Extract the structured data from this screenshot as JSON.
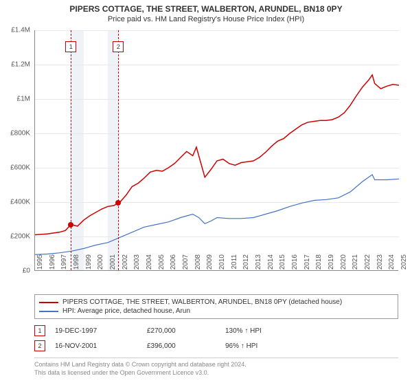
{
  "title": "PIPERS COTTAGE, THE STREET, WALBERTON, ARUNDEL, BN18 0PY",
  "subtitle": "Price paid vs. HM Land Registry's House Price Index (HPI)",
  "chart": {
    "type": "line",
    "x_start": 1995,
    "x_end": 2025,
    "y_min": 0,
    "y_max": 1400000,
    "y_ticks": [
      0,
      200000,
      400000,
      600000,
      800000,
      1000000,
      1200000,
      1400000
    ],
    "y_tick_labels": [
      "£0",
      "£200K",
      "£400K",
      "£600K",
      "£800K",
      "£1M",
      "£1.2M",
      "£1.4M"
    ],
    "x_ticks": [
      1995,
      1996,
      1997,
      1998,
      1999,
      2000,
      2001,
      2002,
      2003,
      2004,
      2005,
      2006,
      2007,
      2008,
      2009,
      2010,
      2011,
      2012,
      2013,
      2014,
      2015,
      2016,
      2017,
      2018,
      2019,
      2020,
      2021,
      2022,
      2023,
      2024,
      2025
    ],
    "grid_color": "#e8e8e8",
    "background_color": "#ffffff",
    "shade_color": "#e8ecf4",
    "shade_ranges": [
      [
        1997.96,
        1999.0
      ],
      [
        2001.0,
        2001.87
      ]
    ],
    "series": [
      {
        "name": "property",
        "label": "PIPERS COTTAGE, THE STREET, WALBERTON, ARUNDEL, BN18 0PY (detached house)",
        "color": "#cc0000",
        "line_width": 1.5,
        "data": [
          [
            1995,
            210000
          ],
          [
            1996,
            215000
          ],
          [
            1997,
            225000
          ],
          [
            1997.5,
            235000
          ],
          [
            1997.96,
            270000
          ],
          [
            1998.5,
            260000
          ],
          [
            1999,
            295000
          ],
          [
            1999.5,
            320000
          ],
          [
            2000,
            340000
          ],
          [
            2000.5,
            360000
          ],
          [
            2001,
            375000
          ],
          [
            2001.5,
            380000
          ],
          [
            2001.87,
            396000
          ],
          [
            2002,
            400000
          ],
          [
            2002.5,
            440000
          ],
          [
            2003,
            490000
          ],
          [
            2003.5,
            510000
          ],
          [
            2004,
            540000
          ],
          [
            2004.5,
            575000
          ],
          [
            2005,
            585000
          ],
          [
            2005.5,
            580000
          ],
          [
            2006,
            600000
          ],
          [
            2006.5,
            625000
          ],
          [
            2007,
            660000
          ],
          [
            2007.5,
            695000
          ],
          [
            2008,
            670000
          ],
          [
            2008.3,
            720000
          ],
          [
            2008.7,
            620000
          ],
          [
            2009,
            545000
          ],
          [
            2009.5,
            590000
          ],
          [
            2010,
            640000
          ],
          [
            2010.5,
            650000
          ],
          [
            2011,
            625000
          ],
          [
            2011.5,
            615000
          ],
          [
            2012,
            630000
          ],
          [
            2012.5,
            635000
          ],
          [
            2013,
            640000
          ],
          [
            2013.5,
            660000
          ],
          [
            2014,
            690000
          ],
          [
            2014.5,
            725000
          ],
          [
            2015,
            755000
          ],
          [
            2015.5,
            770000
          ],
          [
            2016,
            800000
          ],
          [
            2016.5,
            825000
          ],
          [
            2017,
            850000
          ],
          [
            2017.5,
            865000
          ],
          [
            2018,
            870000
          ],
          [
            2018.5,
            875000
          ],
          [
            2019,
            875000
          ],
          [
            2019.5,
            880000
          ],
          [
            2020,
            895000
          ],
          [
            2020.5,
            920000
          ],
          [
            2021,
            965000
          ],
          [
            2021.5,
            1020000
          ],
          [
            2022,
            1070000
          ],
          [
            2022.5,
            1110000
          ],
          [
            2022.8,
            1140000
          ],
          [
            2023,
            1090000
          ],
          [
            2023.5,
            1060000
          ],
          [
            2024,
            1075000
          ],
          [
            2024.5,
            1085000
          ],
          [
            2025,
            1080000
          ]
        ]
      },
      {
        "name": "hpi",
        "label": "HPI: Average price, detached house, Arun",
        "color": "#4472c4",
        "line_width": 1.2,
        "data": [
          [
            1995,
            95000
          ],
          [
            1996,
            98000
          ],
          [
            1997,
            105000
          ],
          [
            1998,
            115000
          ],
          [
            1999,
            130000
          ],
          [
            2000,
            150000
          ],
          [
            2001,
            165000
          ],
          [
            2002,
            195000
          ],
          [
            2003,
            225000
          ],
          [
            2004,
            255000
          ],
          [
            2005,
            270000
          ],
          [
            2006,
            285000
          ],
          [
            2007,
            310000
          ],
          [
            2008,
            330000
          ],
          [
            2008.5,
            310000
          ],
          [
            2009,
            275000
          ],
          [
            2009.5,
            290000
          ],
          [
            2010,
            310000
          ],
          [
            2011,
            305000
          ],
          [
            2012,
            305000
          ],
          [
            2013,
            310000
          ],
          [
            2014,
            330000
          ],
          [
            2015,
            350000
          ],
          [
            2016,
            375000
          ],
          [
            2017,
            395000
          ],
          [
            2018,
            410000
          ],
          [
            2019,
            415000
          ],
          [
            2020,
            425000
          ],
          [
            2021,
            460000
          ],
          [
            2022,
            520000
          ],
          [
            2022.8,
            560000
          ],
          [
            2023,
            530000
          ],
          [
            2024,
            530000
          ],
          [
            2025,
            535000
          ]
        ]
      }
    ],
    "sale_markers": [
      {
        "n": "1",
        "x": 1997.96,
        "y": 270000,
        "color": "#cc0000",
        "box_top": 60
      },
      {
        "n": "2",
        "x": 2001.87,
        "y": 396000,
        "color": "#cc0000",
        "box_top": 60
      }
    ]
  },
  "legend": {
    "rows": [
      {
        "color": "#cc0000",
        "label": "PIPERS COTTAGE, THE STREET, WALBERTON, ARUNDEL, BN18 0PY (detached house)"
      },
      {
        "color": "#4472c4",
        "label": "HPI: Average price, detached house, Arun"
      }
    ]
  },
  "sales": [
    {
      "n": "1",
      "color": "#cc0000",
      "date": "19-DEC-1997",
      "price": "£270,000",
      "hpi": "130% ↑ HPI"
    },
    {
      "n": "2",
      "color": "#cc0000",
      "date": "16-NOV-2001",
      "price": "£396,000",
      "hpi": "96% ↑ HPI"
    }
  ],
  "footer": {
    "line1": "Contains HM Land Registry data © Crown copyright and database right 2024.",
    "line2": "This data is licensed under the Open Government Licence v3.0."
  }
}
